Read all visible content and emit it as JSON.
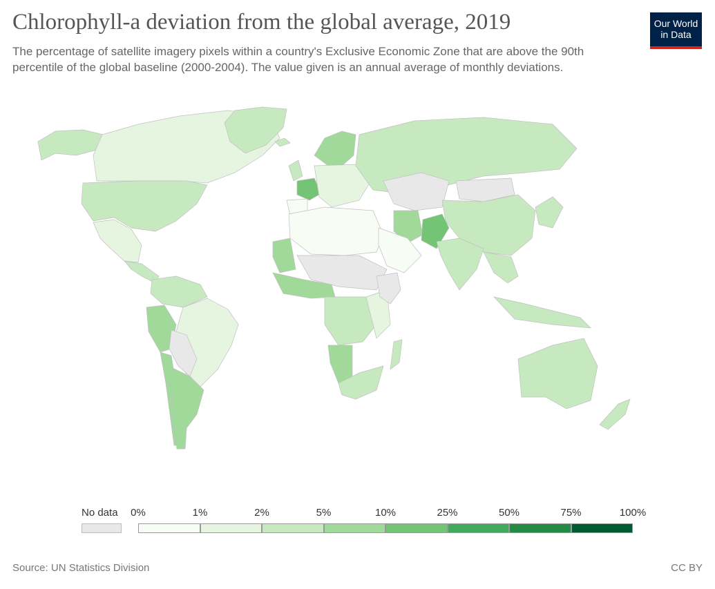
{
  "header": {
    "title": "Chlorophyll-a deviation from the global average, 2019",
    "subtitle": "The percentage of satellite imagery pixels within a country's Exclusive Economic Zone that are above the 90th percentile of the global baseline (2000-2004). The value given is an annual average of monthly deviations."
  },
  "logo": {
    "line1": "Our World",
    "line2": "in Data",
    "bg_color": "#002147",
    "accent_color": "#ce261e"
  },
  "legend": {
    "no_data_label": "No data",
    "no_data_color": "#e8e8e8",
    "bins": [
      {
        "from": "0%",
        "to": "1%",
        "color": "#f7fcf5"
      },
      {
        "from": "1%",
        "to": "2%",
        "color": "#e5f5e0"
      },
      {
        "from": "2%",
        "to": "5%",
        "color": "#c7e9c0"
      },
      {
        "from": "5%",
        "to": "10%",
        "color": "#a1d99b"
      },
      {
        "from": "10%",
        "to": "25%",
        "color": "#74c476"
      },
      {
        "from": "25%",
        "to": "50%",
        "color": "#41ab5d"
      },
      {
        "from": "50%",
        "to": "75%",
        "color": "#238b45"
      },
      {
        "from": "75%",
        "to": "100%",
        "color": "#005a32"
      }
    ],
    "tick_labels": [
      "0%",
      "1%",
      "2%",
      "5%",
      "10%",
      "25%",
      "50%",
      "75%",
      "100%"
    ]
  },
  "footer": {
    "source": "Source: UN Statistics Division",
    "license": "CC BY"
  },
  "map": {
    "regions": [
      {
        "name": "Alaska / Canada North",
        "bin": 2
      },
      {
        "name": "Canada",
        "bin": 1
      },
      {
        "name": "Greenland",
        "bin": 2
      },
      {
        "name": "United States",
        "bin": 2
      },
      {
        "name": "Mexico",
        "bin": 1
      },
      {
        "name": "Central America",
        "bin": 2
      },
      {
        "name": "Colombia / Venezuela",
        "bin": 2
      },
      {
        "name": "Brazil",
        "bin": 1
      },
      {
        "name": "Peru",
        "bin": 3
      },
      {
        "name": "Chile",
        "bin": 3
      },
      {
        "name": "Argentina",
        "bin": 3
      },
      {
        "name": "Bolivia / Paraguay",
        "bin": -1
      },
      {
        "name": "Iceland",
        "bin": 2
      },
      {
        "name": "Norway / Sweden / Finland",
        "bin": 3
      },
      {
        "name": "United Kingdom",
        "bin": 2
      },
      {
        "name": "France",
        "bin": 4
      },
      {
        "name": "Iberia",
        "bin": 0
      },
      {
        "name": "Central Europe",
        "bin": 1
      },
      {
        "name": "Russia",
        "bin": 2
      },
      {
        "name": "Kazakhstan / Central Asia",
        "bin": -1
      },
      {
        "name": "Mongolia",
        "bin": -1
      },
      {
        "name": "China",
        "bin": 2
      },
      {
        "name": "Iran",
        "bin": 3
      },
      {
        "name": "Pakistan",
        "bin": 4
      },
      {
        "name": "India",
        "bin": 2
      },
      {
        "name": "Southeast Asia",
        "bin": 2
      },
      {
        "name": "Japan / Korea",
        "bin": 2
      },
      {
        "name": "Indonesia",
        "bin": 2
      },
      {
        "name": "Australia",
        "bin": 2
      },
      {
        "name": "New Zealand",
        "bin": 2
      },
      {
        "name": "North Africa",
        "bin": 0
      },
      {
        "name": "Mauritania / Western Sahara",
        "bin": 3
      },
      {
        "name": "Sahel interior",
        "bin": -1
      },
      {
        "name": "West Africa coast",
        "bin": 3
      },
      {
        "name": "Central Africa",
        "bin": 2
      },
      {
        "name": "East Africa",
        "bin": 1
      },
      {
        "name": "Horn of Africa",
        "bin": -1
      },
      {
        "name": "Angola / Namibia",
        "bin": 3
      },
      {
        "name": "Southern Africa",
        "bin": 2
      },
      {
        "name": "Madagascar",
        "bin": 2
      },
      {
        "name": "Arabian Peninsula",
        "bin": 0
      }
    ]
  }
}
